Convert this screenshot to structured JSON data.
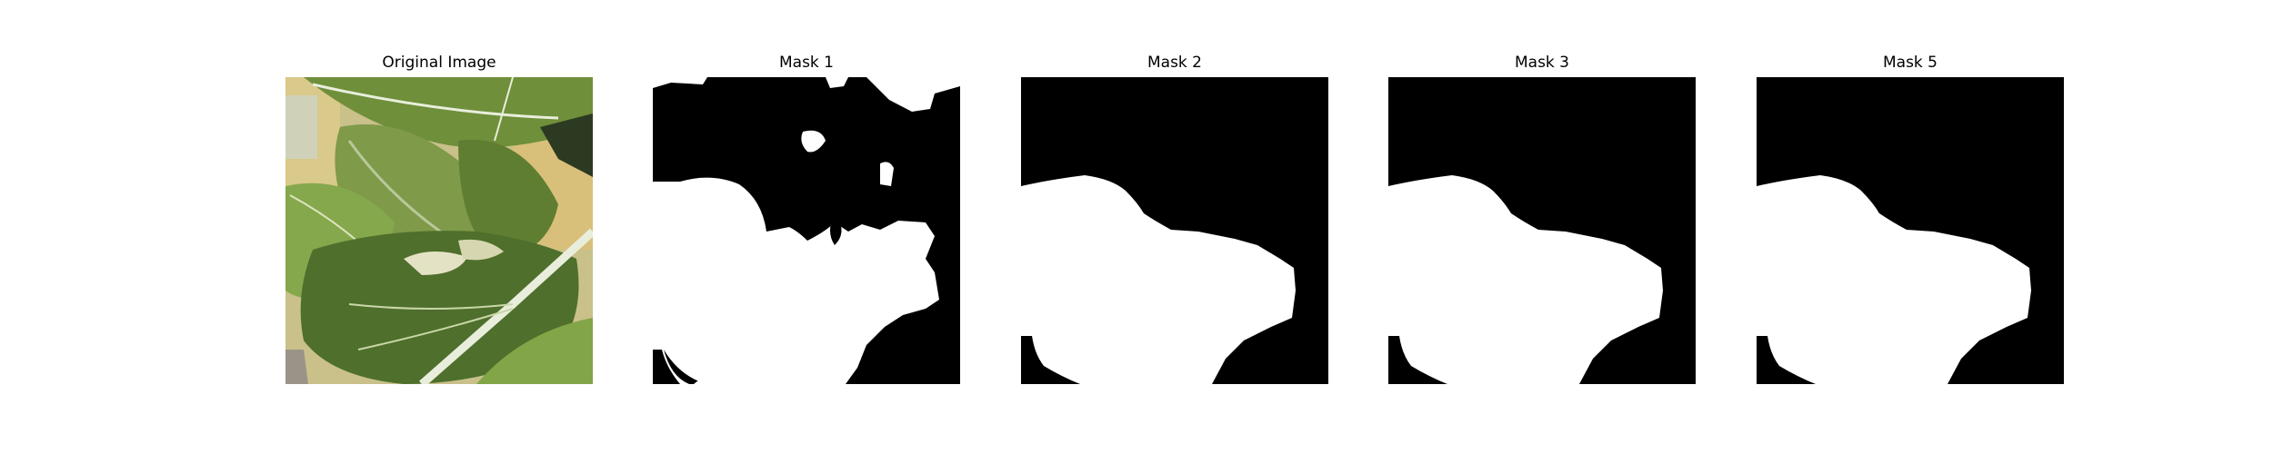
{
  "figure": {
    "panels": [
      {
        "title": "Original Image",
        "kind": "photo"
      },
      {
        "title": "Mask 1",
        "kind": "mask-noisy"
      },
      {
        "title": "Mask 2",
        "kind": "mask"
      },
      {
        "title": "Mask 3",
        "kind": "mask"
      },
      {
        "title": "Mask 5",
        "kind": "mask"
      }
    ]
  },
  "colors": {
    "background": "#ffffff",
    "mask_bg": "#000000",
    "mask_fg": "#ffffff",
    "leaf_dark": "#4f6f2c",
    "leaf_mid": "#7d9a48",
    "leaf_light": "#b8c78a",
    "vein": "#e9eedc"
  }
}
